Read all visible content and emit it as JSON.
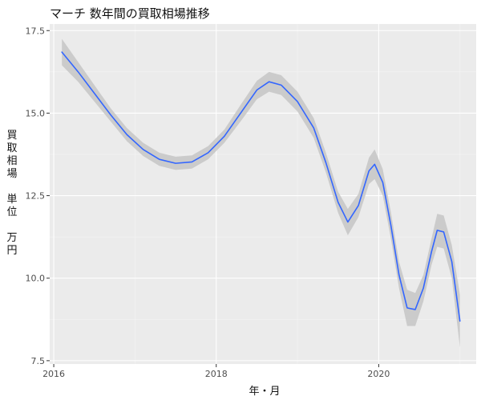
{
  "chart_data": {
    "type": "line",
    "title": "マーチ 数年間の買取相場推移",
    "xlabel": "年・月",
    "ylabel": "買\n取\n相\n場\n\n単\n位\n\n万\n円",
    "xlim": [
      2015.95,
      2021.2
    ],
    "ylim": [
      7.4,
      17.7
    ],
    "x_ticks": [
      2016,
      2018,
      2020
    ],
    "x_tick_labels": [
      "2016",
      "2018",
      "2020"
    ],
    "y_ticks": [
      7.5,
      10.0,
      12.5,
      15.0,
      17.5
    ],
    "y_tick_labels": [
      "7.5",
      "10.0",
      "12.5",
      "15.0",
      "17.5"
    ],
    "grid": true,
    "background": "#ebebeb",
    "series": [
      {
        "color": "#3366ff",
        "band_color": "#c8c8c8",
        "points": [
          {
            "x": 2016.1,
            "y": 16.85,
            "lo": 16.45,
            "hi": 17.25
          },
          {
            "x": 2016.3,
            "y": 16.25,
            "lo": 15.95,
            "hi": 16.55
          },
          {
            "x": 2016.5,
            "y": 15.6,
            "lo": 15.35,
            "hi": 15.85
          },
          {
            "x": 2016.7,
            "y": 14.95,
            "lo": 14.75,
            "hi": 15.15
          },
          {
            "x": 2016.9,
            "y": 14.35,
            "lo": 14.15,
            "hi": 14.55
          },
          {
            "x": 2017.1,
            "y": 13.9,
            "lo": 13.7,
            "hi": 14.1
          },
          {
            "x": 2017.3,
            "y": 13.6,
            "lo": 13.4,
            "hi": 13.8
          },
          {
            "x": 2017.5,
            "y": 13.48,
            "lo": 13.28,
            "hi": 13.68
          },
          {
            "x": 2017.7,
            "y": 13.52,
            "lo": 13.32,
            "hi": 13.72
          },
          {
            "x": 2017.9,
            "y": 13.8,
            "lo": 13.6,
            "hi": 14.0
          },
          {
            "x": 2018.1,
            "y": 14.3,
            "lo": 14.1,
            "hi": 14.5
          },
          {
            "x": 2018.3,
            "y": 15.0,
            "lo": 14.75,
            "hi": 15.25
          },
          {
            "x": 2018.5,
            "y": 15.7,
            "lo": 15.42,
            "hi": 15.98
          },
          {
            "x": 2018.65,
            "y": 15.95,
            "lo": 15.65,
            "hi": 16.25
          },
          {
            "x": 2018.8,
            "y": 15.85,
            "lo": 15.55,
            "hi": 16.15
          },
          {
            "x": 2019.0,
            "y": 15.35,
            "lo": 15.05,
            "hi": 15.65
          },
          {
            "x": 2019.2,
            "y": 14.55,
            "lo": 14.25,
            "hi": 14.85
          },
          {
            "x": 2019.35,
            "y": 13.5,
            "lo": 13.2,
            "hi": 13.8
          },
          {
            "x": 2019.5,
            "y": 12.3,
            "lo": 11.98,
            "hi": 12.62
          },
          {
            "x": 2019.62,
            "y": 11.7,
            "lo": 11.3,
            "hi": 12.1
          },
          {
            "x": 2019.75,
            "y": 12.2,
            "lo": 11.85,
            "hi": 12.55
          },
          {
            "x": 2019.88,
            "y": 13.25,
            "lo": 12.85,
            "hi": 13.65
          },
          {
            "x": 2019.95,
            "y": 13.45,
            "lo": 13.0,
            "hi": 13.9
          },
          {
            "x": 2020.05,
            "y": 12.9,
            "lo": 12.5,
            "hi": 13.3
          },
          {
            "x": 2020.15,
            "y": 11.6,
            "lo": 11.2,
            "hi": 12.0
          },
          {
            "x": 2020.25,
            "y": 10.1,
            "lo": 9.7,
            "hi": 10.5
          },
          {
            "x": 2020.35,
            "y": 9.1,
            "lo": 8.55,
            "hi": 9.65
          },
          {
            "x": 2020.45,
            "y": 9.05,
            "lo": 8.55,
            "hi": 9.55
          },
          {
            "x": 2020.55,
            "y": 9.7,
            "lo": 9.3,
            "hi": 10.1
          },
          {
            "x": 2020.65,
            "y": 10.8,
            "lo": 10.4,
            "hi": 11.2
          },
          {
            "x": 2020.72,
            "y": 11.45,
            "lo": 10.95,
            "hi": 11.95
          },
          {
            "x": 2020.8,
            "y": 11.4,
            "lo": 10.9,
            "hi": 11.9
          },
          {
            "x": 2020.9,
            "y": 10.5,
            "lo": 10.0,
            "hi": 11.0
          },
          {
            "x": 2021.0,
            "y": 8.7,
            "lo": 7.9,
            "hi": 9.5
          }
        ]
      }
    ]
  }
}
